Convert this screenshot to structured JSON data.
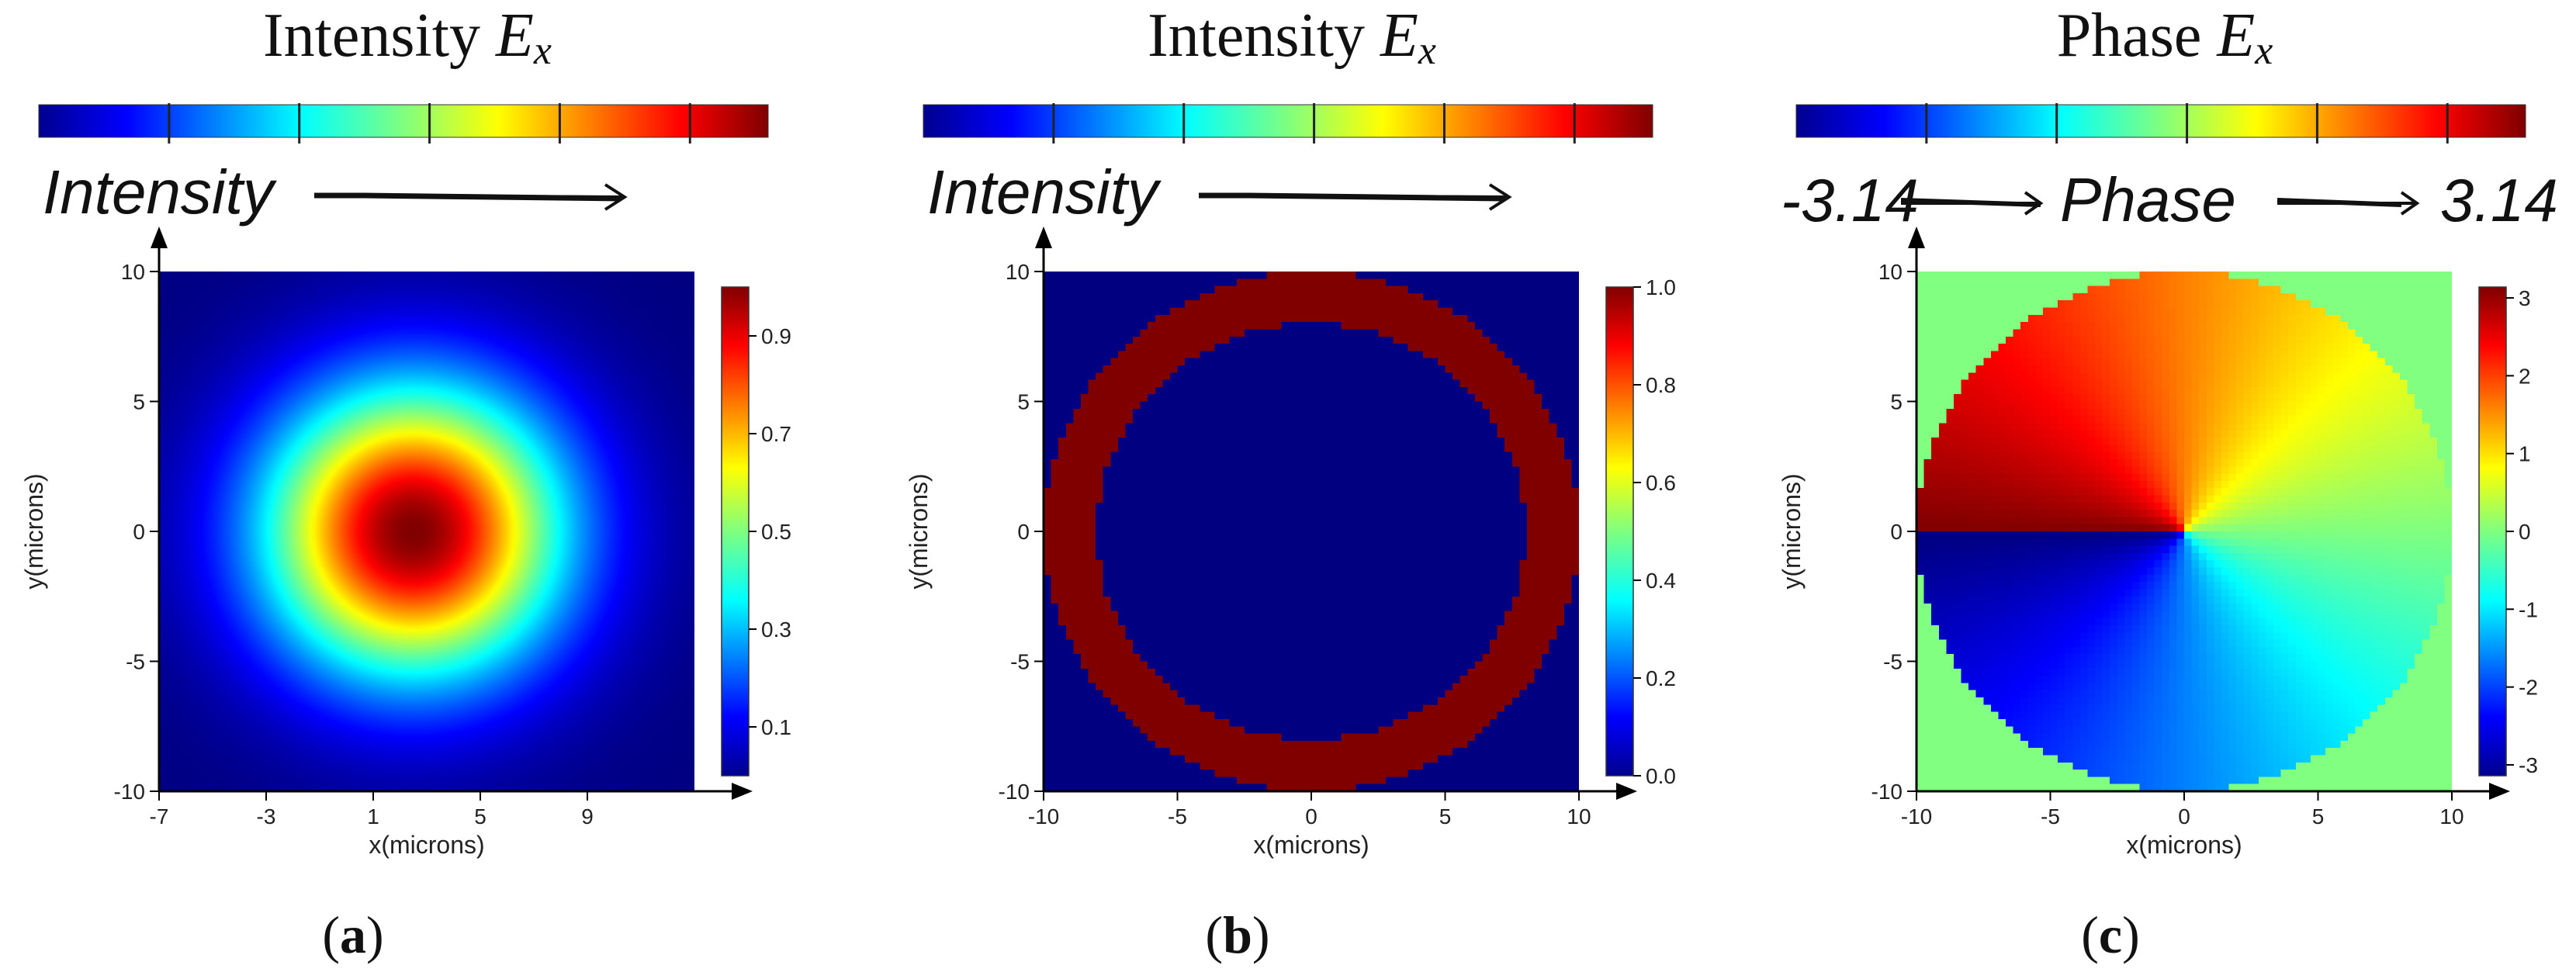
{
  "chart_data": [
    {
      "type": "heatmap",
      "panel_label": "a",
      "title": "Intensity",
      "title_symbol": "E",
      "title_subscript": "x",
      "top_arrow_label": "Intensity",
      "xlabel": "x(microns)",
      "ylabel": "y(microns)",
      "xlim": [
        -7,
        13
      ],
      "ylim": [
        -10,
        10
      ],
      "xticks": [
        -7,
        -3,
        1,
        5,
        9
      ],
      "yticks": [
        -10,
        -5,
        0,
        5,
        10
      ],
      "field": {
        "kind": "gaussian",
        "center": [
          2.5,
          0
        ],
        "waist": 5.5
      },
      "colorbar": {
        "min": 0,
        "max": 1,
        "ticks": [
          "0.1",
          "0.3",
          "0.5",
          "0.7",
          "0.9"
        ]
      }
    },
    {
      "type": "heatmap",
      "panel_label": "b",
      "title": "Intensity",
      "title_symbol": "E",
      "title_subscript": "x",
      "top_arrow_label": "Intensity",
      "xlabel": "x(microns)",
      "ylabel": "y(microns)",
      "xlim": [
        -10,
        10
      ],
      "ylim": [
        -10,
        10
      ],
      "xticks": [
        -10,
        -5,
        0,
        5,
        10
      ],
      "yticks": [
        -10,
        -5,
        0,
        5,
        10
      ],
      "field": {
        "kind": "ring",
        "inner_radius": 8,
        "outer_radius": 10
      },
      "colorbar": {
        "min": 0,
        "max": 1,
        "ticks": [
          "0.0",
          "0.2",
          "0.4",
          "0.6",
          "0.8",
          "1.0"
        ]
      }
    },
    {
      "type": "heatmap",
      "panel_label": "c",
      "title": "Phase",
      "title_symbol": "E",
      "title_subscript": "x",
      "top_arrow_label": "Phase",
      "top_arrow_min": "-3.14",
      "top_arrow_max": "3.14",
      "xlabel": "x(microns)",
      "ylabel": "y(microns)",
      "xlim": [
        -10,
        10
      ],
      "ylim": [
        -10,
        10
      ],
      "xticks": [
        -10,
        -5,
        0,
        5,
        10
      ],
      "yticks": [
        -10,
        -5,
        0,
        5,
        10
      ],
      "field": {
        "kind": "vortex",
        "radius": 10,
        "outside_value": 0
      },
      "colorbar": {
        "min": -3.14,
        "max": 3.14,
        "ticks": [
          "-3",
          "-2",
          "-1",
          "0",
          "1",
          "2",
          "3"
        ]
      }
    }
  ]
}
